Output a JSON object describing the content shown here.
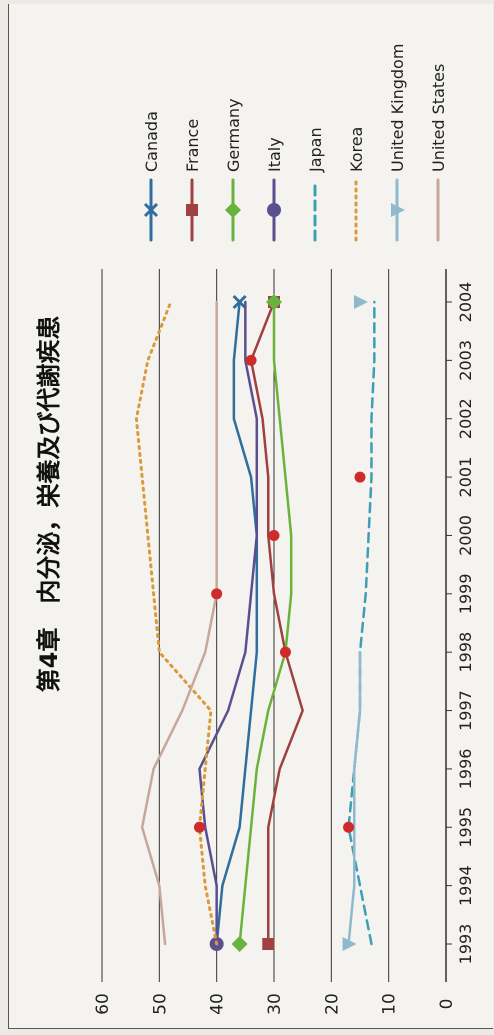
{
  "chart_data": {
    "type": "line",
    "title": "第4章　内分泌，栄養及び代謝疾患",
    "xlabel": "",
    "ylabel": "",
    "x": [
      "1993",
      "1994",
      "1995",
      "1996",
      "1997",
      "1998",
      "1999",
      "2000",
      "2001",
      "2002",
      "2003",
      "2004"
    ],
    "ylim": [
      0,
      60
    ],
    "yticks": [
      0,
      10,
      20,
      30,
      40,
      50,
      60
    ],
    "grid": true,
    "legend_position": "right",
    "series": [
      {
        "name": "Canada",
        "color": "#2f6e9e",
        "dash": "solid",
        "marker": "x-mark",
        "marker_points": [
          11
        ],
        "values": [
          40,
          39,
          36,
          35,
          34,
          33,
          33,
          33,
          34,
          37,
          37,
          36
        ]
      },
      {
        "name": "France",
        "color": "#a04040",
        "dash": "solid",
        "marker": "square",
        "marker_points": [
          0,
          11
        ],
        "values": [
          31,
          31,
          31,
          29,
          25,
          28,
          30,
          31,
          31,
          32,
          34,
          30
        ]
      },
      {
        "name": "Germany",
        "color": "#69b33d",
        "dash": "solid",
        "marker": "diamond",
        "marker_points": [
          0,
          11
        ],
        "values": [
          36,
          35,
          34,
          33,
          31,
          28,
          27,
          27,
          28,
          29,
          30,
          30
        ]
      },
      {
        "name": "Italy",
        "color": "#5a4f8f",
        "dash": "solid",
        "marker": "circle",
        "marker_points": [
          0
        ],
        "values": [
          40,
          40,
          42,
          43,
          38,
          35,
          34,
          33,
          33,
          33,
          35,
          35
        ]
      },
      {
        "name": "Japan",
        "color": "#3d9fb3",
        "dash": "dashed",
        "marker": "",
        "marker_points": [],
        "values": [
          13,
          15,
          17,
          16,
          15,
          15,
          14,
          13.5,
          13,
          13,
          12.5,
          12.5
        ]
      },
      {
        "name": "Korea",
        "color": "#d99a3a",
        "dash": "dotted",
        "marker": "",
        "marker_points": [],
        "values": [
          40,
          42,
          43,
          42,
          41,
          50,
          51,
          52,
          53,
          54,
          52,
          48
        ]
      },
      {
        "name": "United Kingdom",
        "color": "#8fb9cc",
        "dash": "solid",
        "marker": "triangle",
        "marker_points": [
          0,
          11
        ],
        "values": [
          17,
          16,
          16,
          16,
          15,
          15,
          null,
          null,
          null,
          null,
          null,
          15
        ]
      },
      {
        "name": "United States",
        "color": "#c8a79a",
        "dash": "solid",
        "marker": "",
        "marker_points": [],
        "values": [
          49,
          50,
          53,
          51,
          46,
          42,
          40,
          40,
          40,
          40,
          40,
          40
        ]
      }
    ],
    "annotations": [
      {
        "kind": "red-dot",
        "x": "1995",
        "y": 43
      },
      {
        "kind": "red-dot",
        "x": "1998",
        "y": 28
      },
      {
        "kind": "red-dot",
        "x": "1999",
        "y": 40
      },
      {
        "kind": "red-dot",
        "x": "2000",
        "y": 30
      },
      {
        "kind": "red-dot",
        "x": "2001",
        "y": 15
      },
      {
        "kind": "red-dot",
        "x": "2003",
        "y": 34
      },
      {
        "kind": "red-dot",
        "x": "1995",
        "y": 17
      }
    ]
  }
}
